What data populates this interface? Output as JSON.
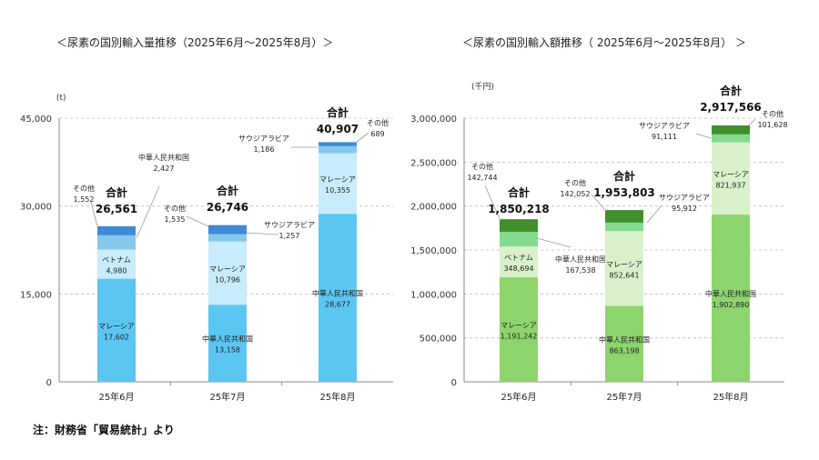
{
  "note": "注：財務省「貿易統計」より",
  "chart_data": [
    {
      "type": "bar",
      "stacked": true,
      "title": "＜尿素の国別輸入量推移（2025年6月～2025年8月）＞",
      "unit": "(t)",
      "ylim": [
        0,
        45000
      ],
      "yticks": [
        0,
        15000,
        30000,
        45000
      ],
      "ytick_labels": [
        "0",
        "15,000",
        "30,000",
        "45,000"
      ],
      "categories": [
        "25年6月",
        "25年7月",
        "25年8月"
      ],
      "total_label": "合計",
      "grid": true,
      "colors": [
        "#5cc6f2",
        "#c8ecfb",
        "#86c8ec",
        "#3f8ad6"
      ],
      "bars": [
        {
          "total": "26,561",
          "segments": [
            {
              "name": "マレーシア",
              "value": 17602,
              "label": "17,602"
            },
            {
              "name": "ベトナム",
              "value": 4980,
              "label": "4,980"
            },
            {
              "name": "中華人民共和国",
              "value": 2427,
              "label": "2,427"
            },
            {
              "name": "その他",
              "value": 1552,
              "label": "1,552"
            }
          ]
        },
        {
          "total": "26,746",
          "segments": [
            {
              "name": "中華人民共和国",
              "value": 13158,
              "label": "13,158"
            },
            {
              "name": "マレーシア",
              "value": 10796,
              "label": "10,796"
            },
            {
              "name": "サウジアラビア",
              "value": 1257,
              "label": "1,257"
            },
            {
              "name": "その他",
              "value": 1535,
              "label": "1,535"
            }
          ]
        },
        {
          "total": "40,907",
          "segments": [
            {
              "name": "中華人民共和国",
              "value": 28677,
              "label": "28,677"
            },
            {
              "name": "マレーシア",
              "value": 10355,
              "label": "10,355"
            },
            {
              "name": "サウジアラビア",
              "value": 1186,
              "label": "1,186"
            },
            {
              "name": "その他",
              "value": 689,
              "label": "689"
            }
          ]
        }
      ]
    },
    {
      "type": "bar",
      "stacked": true,
      "title": "＜尿素の国別輸入額推移（ 2025年6月～2025年8月） ＞",
      "unit": "(千円)",
      "ylim": [
        0,
        3000000
      ],
      "yticks": [
        0,
        500000,
        1000000,
        1500000,
        2000000,
        2500000,
        3000000
      ],
      "ytick_labels": [
        "0",
        "500,000",
        "1,000,000",
        "1,500,000",
        "2,000,000",
        "2,500,000",
        "3,000,000"
      ],
      "categories": [
        "25年6月",
        "25年7月",
        "25年8月"
      ],
      "total_label": "合計",
      "grid": true,
      "colors": [
        "#8dd46c",
        "#d8f1ca",
        "#84da8e",
        "#3f8f2b"
      ],
      "bars": [
        {
          "total": "1,850,218",
          "segments": [
            {
              "name": "マレーシア",
              "value": 1191242,
              "label": "1,191,242"
            },
            {
              "name": "ベトナム",
              "value": 348694,
              "label": "348,694"
            },
            {
              "name": "中華人民共和国",
              "value": 167538,
              "label": "167,538"
            },
            {
              "name": "その他",
              "value": 142744,
              "label": "142,744"
            }
          ]
        },
        {
          "total": "1,953,803",
          "segments": [
            {
              "name": "中華人民共和国",
              "value": 863198,
              "label": "863,198"
            },
            {
              "name": "マレーシア",
              "value": 852641,
              "label": "852,641"
            },
            {
              "name": "サウジアラビア",
              "value": 95912,
              "label": "95,912"
            },
            {
              "name": "その他",
              "value": 142052,
              "label": "142,052"
            }
          ]
        },
        {
          "total": "2,917,566",
          "segments": [
            {
              "name": "中華人民共和国",
              "value": 1902890,
              "label": "1,902,890"
            },
            {
              "name": "マレーシア",
              "value": 821937,
              "label": "821,937"
            },
            {
              "name": "サウジアラビア",
              "value": 91111,
              "label": "91,111"
            },
            {
              "name": "その他",
              "value": 101628,
              "label": "101,628"
            }
          ]
        }
      ]
    }
  ]
}
